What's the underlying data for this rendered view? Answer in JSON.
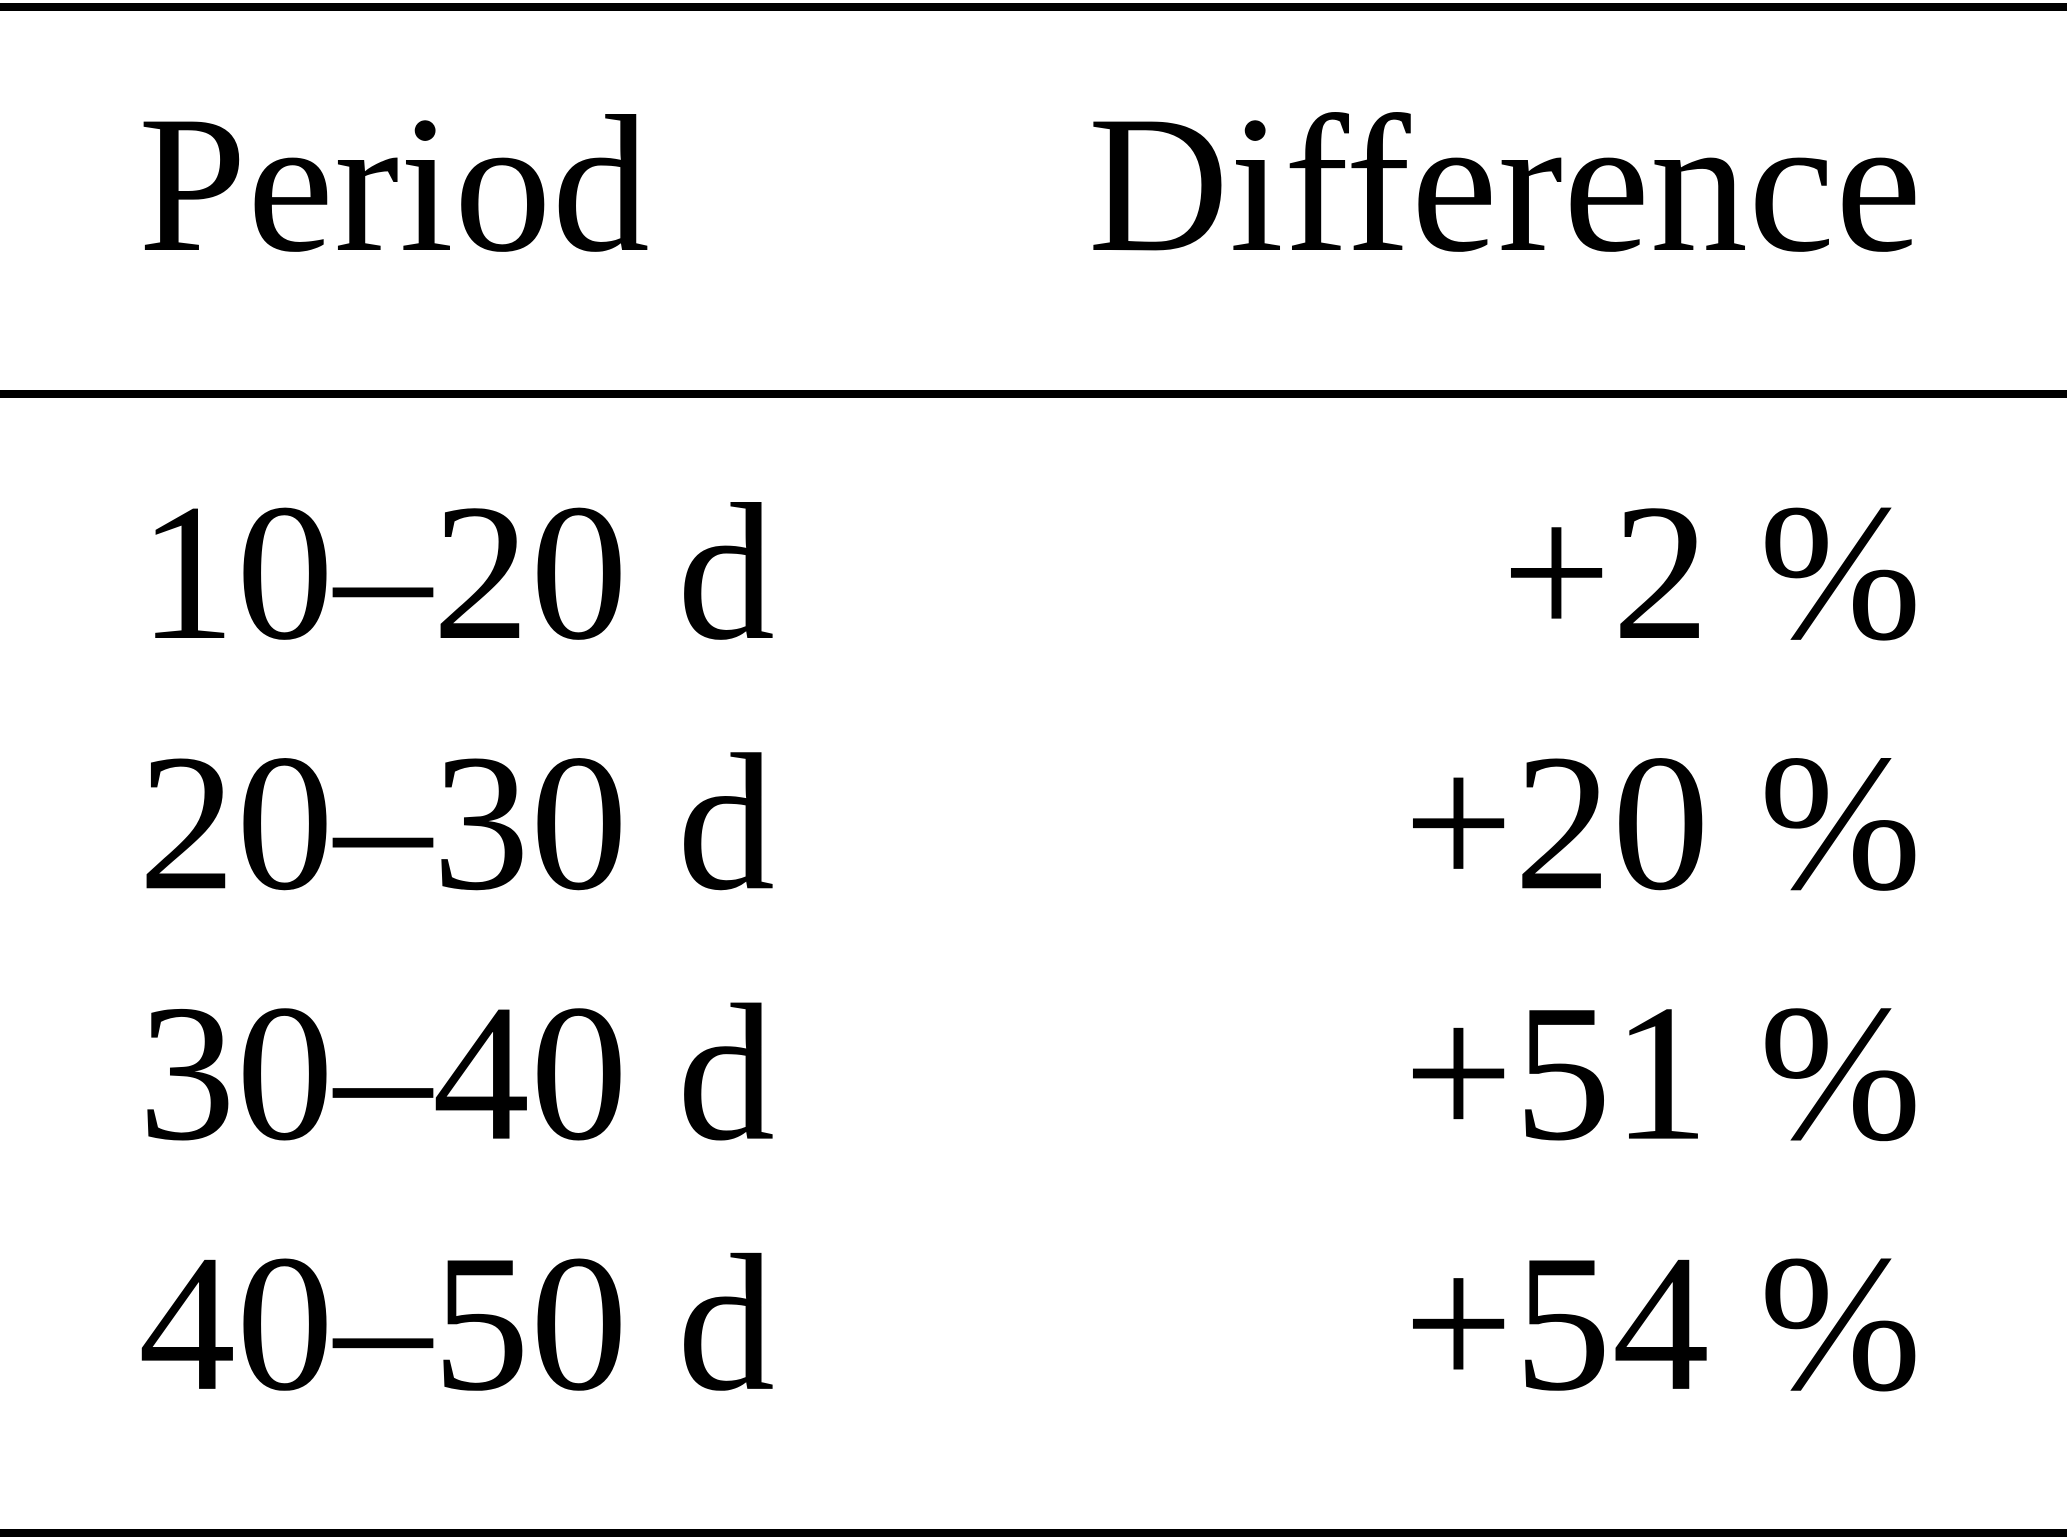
{
  "table": {
    "header": [
      "Period",
      "Difference"
    ],
    "rows": [
      [
        "10–20 d",
        "+2 %"
      ],
      [
        "20–30 d",
        "+20 %"
      ],
      [
        "30–40 d",
        "+51 %"
      ],
      [
        "40–50 d",
        "+54 %"
      ]
    ]
  }
}
